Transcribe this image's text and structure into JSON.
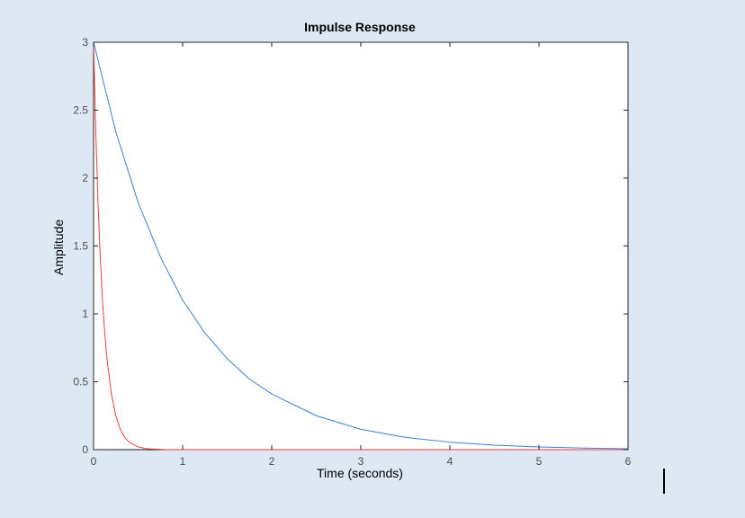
{
  "chart_data": {
    "type": "line",
    "title": "Impulse Response",
    "xlabel": "Time (seconds)",
    "ylabel": "Amplitude",
    "xlim": [
      0,
      6
    ],
    "ylim": [
      0,
      3
    ],
    "xticks": [
      0,
      1,
      2,
      3,
      4,
      5,
      6
    ],
    "xtick_labels": [
      "0",
      "1",
      "2",
      "3",
      "4",
      "5",
      "6"
    ],
    "yticks": [
      0,
      0.5,
      1,
      1.5,
      2,
      2.5,
      3
    ],
    "ytick_labels": [
      "0",
      "0.5",
      "1",
      "1.5",
      "2",
      "2.5",
      "3"
    ],
    "grid": false,
    "reference_line": {
      "y": 0,
      "style": "dotted",
      "color": "#000000"
    },
    "series": [
      {
        "color": "#3a7fd0",
        "x": [
          0,
          0.25,
          0.5,
          0.75,
          1,
          1.25,
          1.5,
          1.75,
          2,
          2.5,
          3,
          3.5,
          4,
          4.5,
          5,
          5.5,
          6
        ],
        "y": [
          3,
          2.34,
          1.82,
          1.42,
          1.1,
          0.86,
          0.67,
          0.52,
          0.41,
          0.25,
          0.15,
          0.09,
          0.055,
          0.033,
          0.02,
          0.012,
          0.007
        ]
      },
      {
        "color": "#f03c3c",
        "x": [
          0,
          0.025,
          0.05,
          0.075,
          0.1,
          0.125,
          0.15,
          0.2,
          0.25,
          0.3,
          0.35,
          0.4,
          0.5,
          0.6,
          0.8,
          1,
          2,
          3,
          4,
          5,
          6
        ],
        "y": [
          3,
          2.34,
          1.82,
          1.42,
          1.1,
          0.86,
          0.67,
          0.41,
          0.25,
          0.15,
          0.09,
          0.055,
          0.02,
          0.007,
          0.001,
          0,
          0,
          0,
          0,
          0,
          0
        ]
      }
    ]
  }
}
